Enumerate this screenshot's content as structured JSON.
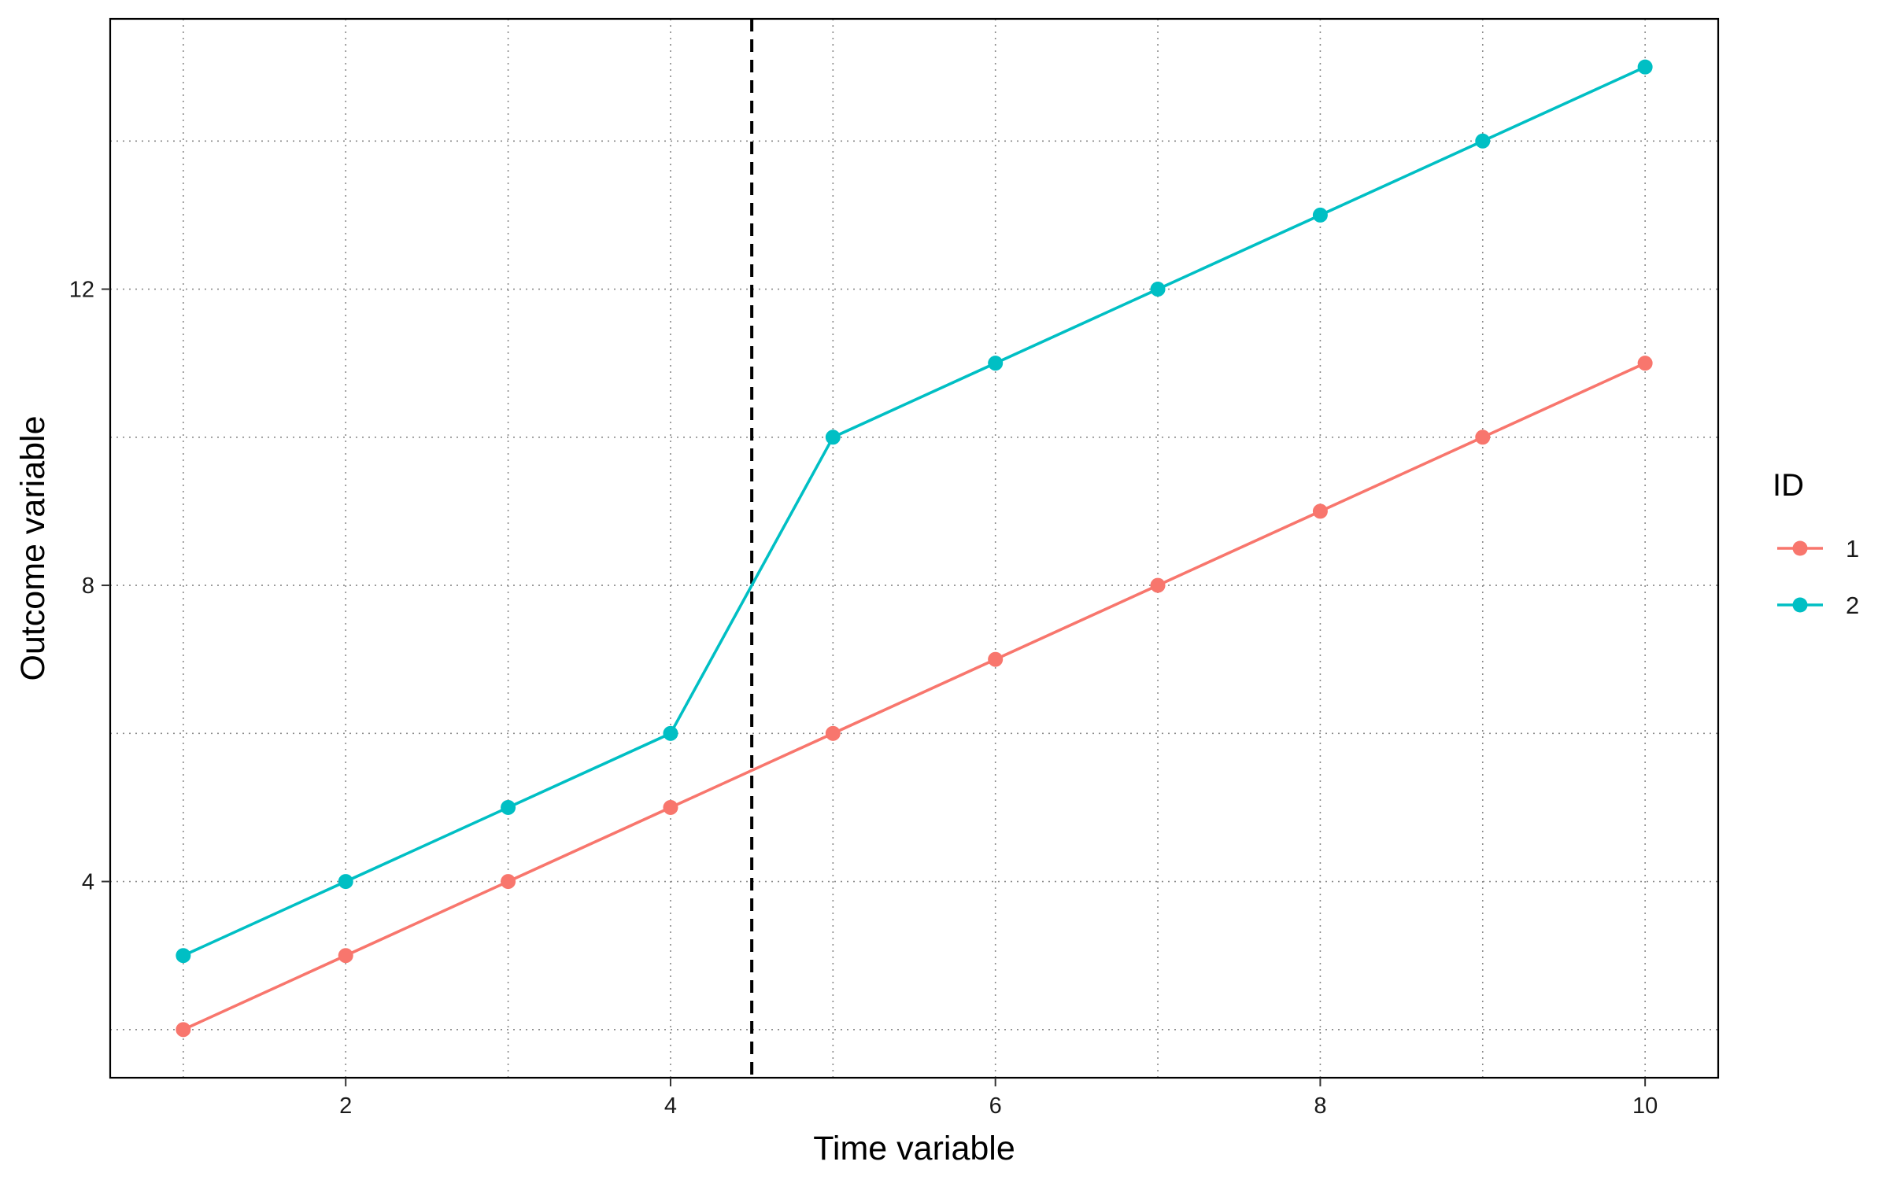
{
  "chart_data": {
    "type": "line",
    "title": "",
    "xlabel": "Time variable",
    "ylabel": "Outcome variable",
    "x": [
      1,
      2,
      3,
      4,
      5,
      6,
      7,
      8,
      9,
      10
    ],
    "series": [
      {
        "name": "1",
        "color": "#F8766D",
        "values": [
          2,
          3,
          4,
          5,
          6,
          7,
          8,
          9,
          10,
          11
        ]
      },
      {
        "name": "2",
        "color": "#00BFC4",
        "values": [
          3,
          4,
          5,
          6,
          10,
          11,
          12,
          13,
          14,
          15
        ]
      }
    ],
    "xlim": [
      0.55,
      10.45
    ],
    "ylim": [
      1.35,
      15.65
    ],
    "x_ticks": [
      2,
      4,
      6,
      8,
      10
    ],
    "y_ticks": [
      4,
      8,
      12
    ],
    "x_major_grid": [
      1,
      2,
      3,
      4,
      5,
      6,
      7,
      8,
      9,
      10
    ],
    "y_major_grid": [
      2,
      4,
      6,
      8,
      10,
      12,
      14
    ],
    "grid": "dotted",
    "vline": {
      "x": 4.5,
      "style": "dashed",
      "color": "#000000"
    },
    "legend": {
      "title": "ID",
      "position": "right"
    }
  }
}
